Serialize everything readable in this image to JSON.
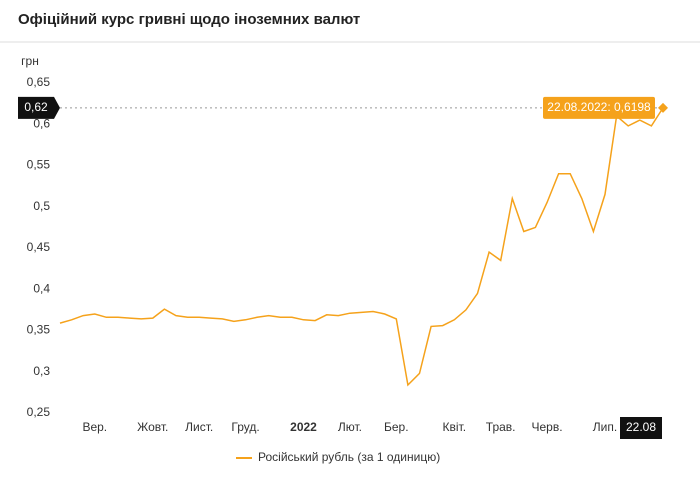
{
  "chart_data": {
    "type": "line",
    "title": "Офіційний курс гривні щодо іноземних валют",
    "y_label": "грн",
    "categories": [
      null,
      null,
      null,
      "Вер.",
      null,
      null,
      null,
      null,
      "Жовт.",
      null,
      null,
      null,
      "Лист.",
      null,
      null,
      null,
      "Груд.",
      null,
      null,
      null,
      null,
      "2022",
      null,
      null,
      null,
      "Лют.",
      null,
      null,
      null,
      "Бер.",
      null,
      null,
      null,
      null,
      "Квіт.",
      null,
      null,
      null,
      "Трав.",
      null,
      null,
      null,
      "Черв.",
      null,
      null,
      null,
      null,
      "Лип.",
      null,
      null,
      null,
      null,
      "22.08"
    ],
    "series": [
      {
        "name": "Російський рубль (за 1 одиницю)",
        "color": "#f5a21b",
        "values": [
          0.359,
          0.363,
          0.368,
          0.37,
          0.366,
          0.366,
          0.365,
          0.364,
          0.365,
          0.376,
          0.368,
          0.366,
          0.366,
          0.365,
          0.364,
          0.361,
          0.363,
          0.366,
          0.368,
          0.366,
          0.366,
          0.363,
          0.362,
          0.369,
          0.368,
          0.371,
          0.372,
          0.373,
          0.37,
          0.364,
          0.284,
          0.298,
          0.355,
          0.356,
          0.363,
          0.375,
          0.395,
          0.445,
          0.435,
          0.51,
          0.47,
          0.475,
          0.505,
          0.54,
          0.54,
          0.51,
          0.47,
          0.515,
          0.61,
          0.598,
          0.605,
          0.598,
          0.6198
        ]
      }
    ],
    "ylim": [
      0.25,
      0.65
    ],
    "yticks": [
      {
        "value": 0.25,
        "label": "0,25"
      },
      {
        "value": 0.3,
        "label": "0,3"
      },
      {
        "value": 0.35,
        "label": "0,35"
      },
      {
        "value": 0.4,
        "label": "0,4"
      },
      {
        "value": 0.45,
        "label": "0,45"
      },
      {
        "value": 0.5,
        "label": "0,5"
      },
      {
        "value": 0.55,
        "label": "0,55"
      },
      {
        "value": 0.6,
        "label": "0,6"
      },
      {
        "value": 0.65,
        "label": "0,65"
      }
    ],
    "grid": false,
    "crosshair_label": "0,62",
    "tooltip": "22.08.2022: 0,6198"
  }
}
